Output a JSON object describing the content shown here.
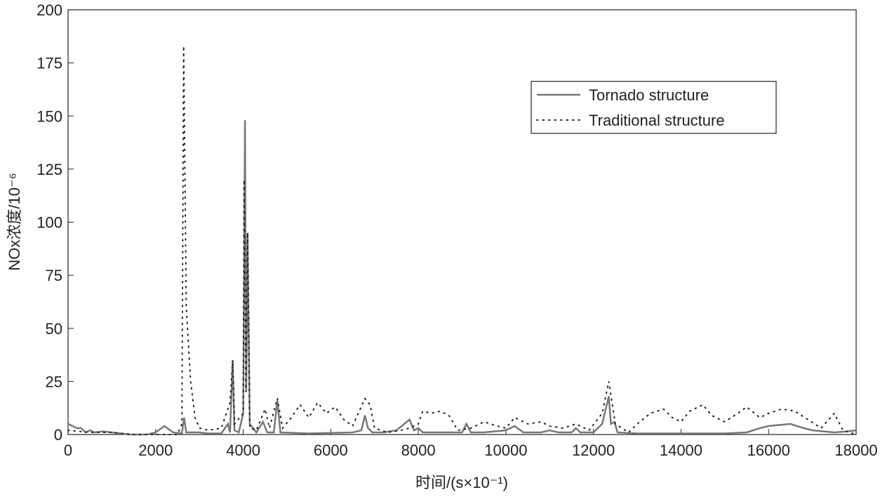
{
  "chart_data": {
    "type": "line",
    "xlabel": "时间/(s×10⁻¹)",
    "ylabel": "NOx浓度/10⁻⁶",
    "xlim": [
      0,
      18000
    ],
    "xticks": [
      0,
      2000,
      4000,
      6000,
      8000,
      10000,
      12000,
      14000,
      16000,
      18000
    ],
    "ylim": [
      0,
      200
    ],
    "yticks": [
      0,
      25,
      50,
      75,
      100,
      125,
      150,
      175,
      200
    ],
    "legend": "upper right",
    "series": [
      {
        "name": "Tornado structure",
        "color": "#777777",
        "style": "solid",
        "x": [
          0,
          100,
          200,
          300,
          400,
          500,
          600,
          800,
          1000,
          1200,
          1400,
          1800,
          2000,
          2200,
          2400,
          2600,
          2650,
          2700,
          3000,
          3200,
          3500,
          3650,
          3700,
          3760,
          3800,
          3900,
          4000,
          4040,
          4070,
          4100,
          4150,
          4300,
          4450,
          4550,
          4700,
          4780,
          4850,
          5500,
          6500,
          6700,
          6780,
          6850,
          6950,
          7200,
          7500,
          7800,
          7900,
          8000,
          8100,
          8500,
          9000,
          9100,
          9200,
          9500,
          10000,
          10200,
          10400,
          10800,
          11000,
          11200,
          11500,
          11600,
          11700,
          12000,
          12200,
          12350,
          12400,
          12480,
          12550,
          13000,
          14000,
          15000,
          15500,
          15800,
          16000,
          16500,
          16800,
          17000,
          17500,
          17800,
          18000
        ],
        "values": [
          5,
          4,
          3,
          3,
          1,
          2,
          1,
          1.5,
          1,
          0.5,
          0,
          0,
          1,
          4,
          1,
          0.5,
          8,
          1,
          1,
          0.5,
          0.5,
          5,
          1,
          35,
          2,
          1,
          10,
          148,
          20,
          95,
          5,
          1,
          6,
          1,
          1,
          16,
          1,
          0.5,
          1,
          2,
          9,
          3,
          1,
          1,
          2,
          7,
          2,
          3,
          1,
          1,
          1,
          5,
          1,
          1,
          2,
          4,
          1,
          1,
          2,
          1,
          1,
          3,
          1,
          1,
          5,
          18,
          5,
          6,
          1,
          0.5,
          0.5,
          0.5,
          1,
          3,
          4,
          5,
          3,
          2,
          1,
          1.5,
          2
        ]
      },
      {
        "name": "Traditional structure",
        "color": "#222222",
        "style": "dotted",
        "x": [
          0,
          500,
          1000,
          1500,
          2000,
          2500,
          2600,
          2640,
          2700,
          2800,
          2900,
          3000,
          3200,
          3500,
          3700,
          3760,
          3800,
          4000,
          4020,
          4060,
          4100,
          4150,
          4300,
          4500,
          4600,
          4780,
          4900,
          5100,
          5300,
          5500,
          5700,
          5900,
          6100,
          6300,
          6500,
          6780,
          6900,
          7000,
          7300,
          7600,
          7800,
          8000,
          8100,
          8300,
          8500,
          8700,
          8900,
          9200,
          9500,
          9800,
          10000,
          10200,
          10500,
          10800,
          11000,
          11300,
          11600,
          11900,
          12200,
          12350,
          12500,
          12800,
          13000,
          13300,
          13600,
          13800,
          14000,
          14200,
          14500,
          14700,
          15000,
          15300,
          15500,
          15800,
          16000,
          16300,
          16600,
          16900,
          17200,
          17500,
          17700,
          18000
        ],
        "values": [
          2,
          1,
          1,
          0,
          0,
          0,
          5,
          183,
          60,
          25,
          8,
          3,
          2,
          3,
          15,
          35,
          5,
          10,
          120,
          20,
          95,
          3,
          2,
          12,
          3,
          17,
          3,
          8,
          14,
          8,
          15,
          10,
          13,
          7,
          4,
          17,
          14,
          3,
          1,
          2,
          3,
          5,
          11,
          10,
          11,
          9,
          2,
          3,
          6,
          4,
          3,
          8,
          5,
          6,
          4,
          3,
          5,
          2,
          10,
          25,
          5,
          1,
          5,
          10,
          12,
          8,
          6,
          11,
          14,
          9,
          6,
          10,
          13,
          8,
          10,
          12,
          11,
          7,
          3,
          10,
          2,
          0
        ]
      }
    ]
  }
}
